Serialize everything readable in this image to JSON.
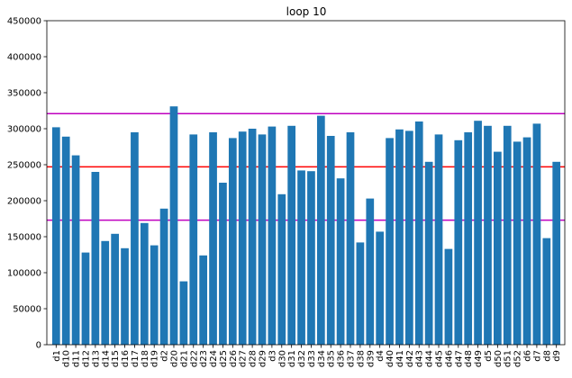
{
  "chart_data": {
    "type": "bar",
    "title": "loop 10",
    "xlabel": "",
    "ylabel": "",
    "ylim": [
      0,
      450000
    ],
    "yticks": [
      0,
      50000,
      100000,
      150000,
      200000,
      250000,
      300000,
      350000,
      400000,
      450000
    ],
    "grid": false,
    "categories": [
      "d1",
      "d10",
      "d11",
      "d12",
      "d13",
      "d14",
      "d15",
      "d16",
      "d17",
      "d18",
      "d19",
      "d2",
      "d20",
      "d21",
      "d22",
      "d23",
      "d24",
      "d25",
      "d26",
      "d27",
      "d28",
      "d29",
      "d3",
      "d30",
      "d31",
      "d32",
      "d33",
      "d34",
      "d35",
      "d36",
      "d37",
      "d38",
      "d39",
      "d4",
      "d40",
      "d41",
      "d42",
      "d43",
      "d44",
      "d45",
      "d46",
      "d47",
      "d48",
      "d49",
      "d5",
      "d50",
      "d51",
      "d52",
      "d6",
      "d7",
      "d8",
      "d9"
    ],
    "values": [
      302000,
      289000,
      263000,
      128000,
      240000,
      144000,
      154000,
      134000,
      295000,
      169000,
      138000,
      189000,
      331000,
      88000,
      292000,
      124000,
      295000,
      225000,
      287000,
      296000,
      300000,
      292000,
      303000,
      209000,
      304000,
      242000,
      241000,
      318000,
      290000,
      231000,
      295000,
      142000,
      203000,
      157000,
      287000,
      299000,
      297000,
      310000,
      254000,
      292000,
      133000,
      284000,
      295000,
      311000,
      304000,
      268000,
      304000,
      282000,
      288000,
      307000,
      148000,
      254000
    ],
    "bar_color": "#1f77b4",
    "reference_lines": [
      {
        "value": 321000,
        "color": "#bf00bf"
      },
      {
        "value": 247000,
        "color": "#ff0000"
      },
      {
        "value": 173000,
        "color": "#bf00bf"
      }
    ]
  }
}
